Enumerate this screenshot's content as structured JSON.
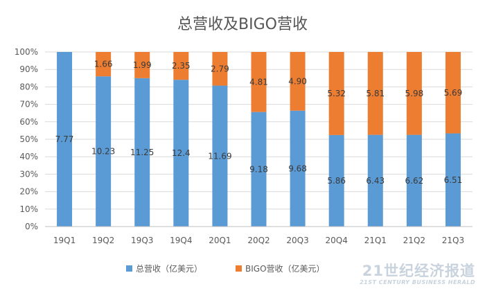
{
  "chart_data": {
    "type": "bar",
    "stacked": "percent",
    "title": "总营收及BIGO营收",
    "categories": [
      "19Q1",
      "19Q2",
      "19Q3",
      "19Q4",
      "20Q1",
      "20Q2",
      "20Q3",
      "20Q4",
      "21Q1",
      "21Q2",
      "21Q3"
    ],
    "series": [
      {
        "name": "总营收（亿美元）",
        "color": "#5b9bd5",
        "values": [
          7.77,
          10.23,
          11.25,
          12.4,
          11.69,
          9.18,
          9.68,
          5.86,
          6.43,
          6.62,
          6.51
        ],
        "labels": [
          "7.77",
          "10.23",
          "11.25",
          "12.4",
          "11.69",
          "9.18",
          "9.68",
          "5.86",
          "6.43",
          "6.62",
          "6.51"
        ]
      },
      {
        "name": "BIGO营收（亿美元）",
        "color": "#ed7d31",
        "values": [
          0,
          1.66,
          1.99,
          2.35,
          2.79,
          4.81,
          4.9,
          5.32,
          5.81,
          5.98,
          5.69
        ],
        "labels": [
          "",
          "1.66",
          "1.99",
          "2.35",
          "2.79",
          "4.81",
          "4.90",
          "5.32",
          "5.81",
          "5.98",
          "5.69"
        ]
      }
    ],
    "y_ticks": [
      "0%",
      "10%",
      "20%",
      "30%",
      "40%",
      "50%",
      "60%",
      "70%",
      "80%",
      "90%",
      "100%"
    ],
    "ylim": [
      0,
      100
    ],
    "grid": true,
    "legend_position": "bottom"
  },
  "watermark": {
    "main": "21世纪经济报道",
    "sub": "21ST CENTURY BUSINESS HERALD"
  }
}
